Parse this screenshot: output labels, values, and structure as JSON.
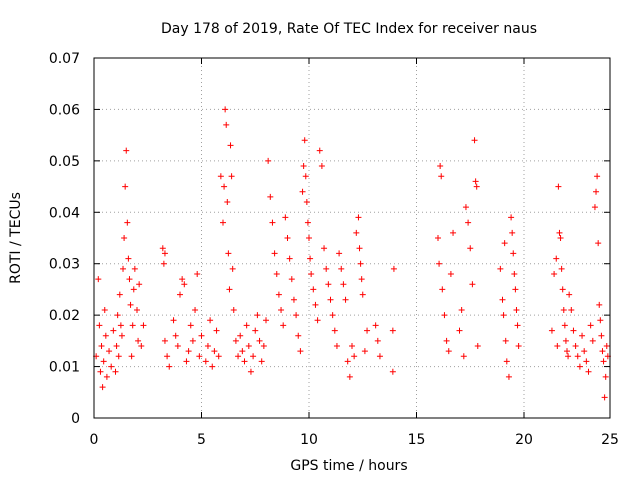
{
  "chart_data": {
    "type": "scatter",
    "title": "Day 178 of 2019, Rate Of TEC Index for receiver naus",
    "xlabel": "GPS time / hours",
    "ylabel": "ROTI / TECUs",
    "xlim": [
      0,
      24
    ],
    "ylim": [
      0,
      0.07
    ],
    "x_ticks": [
      0,
      5,
      10,
      15,
      20,
      25
    ],
    "x_tick_labels": [
      "0",
      "5",
      "10",
      "15",
      "20",
      "25"
    ],
    "y_ticks": [
      0,
      0.01,
      0.02,
      0.03,
      0.04,
      0.05,
      0.06,
      0.07
    ],
    "y_tick_labels": [
      "0",
      "0.01",
      "0.02",
      "0.03",
      "0.04",
      "0.05",
      "0.06",
      "0.07"
    ],
    "grid": true,
    "marker": "+",
    "color": "#ff0000",
    "series": [
      {
        "points": [
          [
            0.1,
            0.012
          ],
          [
            0.2,
            0.027
          ],
          [
            0.25,
            0.018
          ],
          [
            0.3,
            0.009
          ],
          [
            0.35,
            0.014
          ],
          [
            0.4,
            0.006
          ],
          [
            0.45,
            0.011
          ],
          [
            0.5,
            0.021
          ],
          [
            0.55,
            0.016
          ],
          [
            0.6,
            0.008
          ],
          [
            0.7,
            0.013
          ],
          [
            0.8,
            0.01
          ],
          [
            0.9,
            0.017
          ],
          [
            1.0,
            0.009
          ],
          [
            1.05,
            0.014
          ],
          [
            1.1,
            0.02
          ],
          [
            1.15,
            0.012
          ],
          [
            1.2,
            0.024
          ],
          [
            1.25,
            0.018
          ],
          [
            1.3,
            0.016
          ],
          [
            1.35,
            0.029
          ],
          [
            1.4,
            0.035
          ],
          [
            1.45,
            0.045
          ],
          [
            1.5,
            0.052
          ],
          [
            1.55,
            0.038
          ],
          [
            1.6,
            0.031
          ],
          [
            1.65,
            0.027
          ],
          [
            1.7,
            0.022
          ],
          [
            1.75,
            0.012
          ],
          [
            1.8,
            0.018
          ],
          [
            1.85,
            0.025
          ],
          [
            1.9,
            0.029
          ],
          [
            2.0,
            0.021
          ],
          [
            2.05,
            0.015
          ],
          [
            2.1,
            0.026
          ],
          [
            2.2,
            0.014
          ],
          [
            2.3,
            0.018
          ],
          [
            3.2,
            0.033
          ],
          [
            3.25,
            0.03
          ],
          [
            3.3,
            0.032
          ],
          [
            3.3,
            0.015
          ],
          [
            3.4,
            0.012
          ],
          [
            3.5,
            0.01
          ],
          [
            3.7,
            0.019
          ],
          [
            3.8,
            0.016
          ],
          [
            3.9,
            0.014
          ],
          [
            4.0,
            0.024
          ],
          [
            4.1,
            0.027
          ],
          [
            4.2,
            0.026
          ],
          [
            4.3,
            0.011
          ],
          [
            4.4,
            0.013
          ],
          [
            4.5,
            0.018
          ],
          [
            4.6,
            0.015
          ],
          [
            4.7,
            0.021
          ],
          [
            4.8,
            0.028
          ],
          [
            4.9,
            0.012
          ],
          [
            5.0,
            0.016
          ],
          [
            5.2,
            0.011
          ],
          [
            5.3,
            0.014
          ],
          [
            5.4,
            0.019
          ],
          [
            5.5,
            0.01
          ],
          [
            5.6,
            0.013
          ],
          [
            5.7,
            0.017
          ],
          [
            5.8,
            0.012
          ],
          [
            5.9,
            0.047
          ],
          [
            6.0,
            0.038
          ],
          [
            6.05,
            0.045
          ],
          [
            6.1,
            0.06
          ],
          [
            6.15,
            0.057
          ],
          [
            6.2,
            0.042
          ],
          [
            6.25,
            0.032
          ],
          [
            6.3,
            0.025
          ],
          [
            6.35,
            0.053
          ],
          [
            6.4,
            0.047
          ],
          [
            6.45,
            0.029
          ],
          [
            6.5,
            0.021
          ],
          [
            6.6,
            0.015
          ],
          [
            6.7,
            0.012
          ],
          [
            6.8,
            0.016
          ],
          [
            6.9,
            0.013
          ],
          [
            7.0,
            0.011
          ],
          [
            7.1,
            0.018
          ],
          [
            7.2,
            0.014
          ],
          [
            7.3,
            0.009
          ],
          [
            7.4,
            0.012
          ],
          [
            7.5,
            0.017
          ],
          [
            7.6,
            0.02
          ],
          [
            7.7,
            0.015
          ],
          [
            7.8,
            0.011
          ],
          [
            7.9,
            0.014
          ],
          [
            8.0,
            0.019
          ],
          [
            8.1,
            0.05
          ],
          [
            8.2,
            0.043
          ],
          [
            8.3,
            0.038
          ],
          [
            8.4,
            0.032
          ],
          [
            8.5,
            0.028
          ],
          [
            8.6,
            0.024
          ],
          [
            8.7,
            0.021
          ],
          [
            8.8,
            0.018
          ],
          [
            8.9,
            0.039
          ],
          [
            9.0,
            0.035
          ],
          [
            9.1,
            0.031
          ],
          [
            9.2,
            0.027
          ],
          [
            9.3,
            0.023
          ],
          [
            9.4,
            0.02
          ],
          [
            9.5,
            0.016
          ],
          [
            9.6,
            0.013
          ],
          [
            9.7,
            0.044
          ],
          [
            9.75,
            0.049
          ],
          [
            9.8,
            0.054
          ],
          [
            9.85,
            0.047
          ],
          [
            9.9,
            0.042
          ],
          [
            9.95,
            0.038
          ],
          [
            10.0,
            0.035
          ],
          [
            10.05,
            0.031
          ],
          [
            10.1,
            0.028
          ],
          [
            10.2,
            0.025
          ],
          [
            10.3,
            0.022
          ],
          [
            10.4,
            0.019
          ],
          [
            10.5,
            0.052
          ],
          [
            10.6,
            0.049
          ],
          [
            10.7,
            0.033
          ],
          [
            10.8,
            0.029
          ],
          [
            10.9,
            0.026
          ],
          [
            11.0,
            0.023
          ],
          [
            11.1,
            0.02
          ],
          [
            11.2,
            0.017
          ],
          [
            11.3,
            0.014
          ],
          [
            11.4,
            0.032
          ],
          [
            11.5,
            0.029
          ],
          [
            11.6,
            0.026
          ],
          [
            11.7,
            0.023
          ],
          [
            11.8,
            0.011
          ],
          [
            11.9,
            0.008
          ],
          [
            12.0,
            0.014
          ],
          [
            12.1,
            0.012
          ],
          [
            12.2,
            0.036
          ],
          [
            12.3,
            0.039
          ],
          [
            12.35,
            0.033
          ],
          [
            12.4,
            0.03
          ],
          [
            12.45,
            0.027
          ],
          [
            12.5,
            0.024
          ],
          [
            12.6,
            0.013
          ],
          [
            12.7,
            0.017
          ],
          [
            13.1,
            0.018
          ],
          [
            13.2,
            0.015
          ],
          [
            13.3,
            0.012
          ],
          [
            13.9,
            0.017
          ],
          [
            13.9,
            0.009
          ],
          [
            13.95,
            0.029
          ],
          [
            16.0,
            0.035
          ],
          [
            16.05,
            0.03
          ],
          [
            16.1,
            0.049
          ],
          [
            16.15,
            0.047
          ],
          [
            16.2,
            0.025
          ],
          [
            16.3,
            0.02
          ],
          [
            16.4,
            0.015
          ],
          [
            16.5,
            0.013
          ],
          [
            16.6,
            0.028
          ],
          [
            16.7,
            0.036
          ],
          [
            17.0,
            0.017
          ],
          [
            17.1,
            0.021
          ],
          [
            17.2,
            0.012
          ],
          [
            17.3,
            0.041
          ],
          [
            17.4,
            0.038
          ],
          [
            17.5,
            0.033
          ],
          [
            17.6,
            0.026
          ],
          [
            17.7,
            0.054
          ],
          [
            17.75,
            0.046
          ],
          [
            17.8,
            0.045
          ],
          [
            17.85,
            0.014
          ],
          [
            18.9,
            0.029
          ],
          [
            19.0,
            0.023
          ],
          [
            19.05,
            0.02
          ],
          [
            19.1,
            0.034
          ],
          [
            19.15,
            0.015
          ],
          [
            19.2,
            0.011
          ],
          [
            19.3,
            0.008
          ],
          [
            19.4,
            0.039
          ],
          [
            19.45,
            0.036
          ],
          [
            19.5,
            0.032
          ],
          [
            19.55,
            0.028
          ],
          [
            19.6,
            0.025
          ],
          [
            19.65,
            0.021
          ],
          [
            19.7,
            0.018
          ],
          [
            19.75,
            0.014
          ],
          [
            21.3,
            0.017
          ],
          [
            21.4,
            0.028
          ],
          [
            21.5,
            0.031
          ],
          [
            21.55,
            0.014
          ],
          [
            21.6,
            0.045
          ],
          [
            21.65,
            0.036
          ],
          [
            21.7,
            0.035
          ],
          [
            21.75,
            0.029
          ],
          [
            21.8,
            0.025
          ],
          [
            21.85,
            0.021
          ],
          [
            21.9,
            0.018
          ],
          [
            21.95,
            0.015
          ],
          [
            22.0,
            0.013
          ],
          [
            22.05,
            0.012
          ],
          [
            22.1,
            0.024
          ],
          [
            22.2,
            0.021
          ],
          [
            22.3,
            0.017
          ],
          [
            22.4,
            0.014
          ],
          [
            22.5,
            0.012
          ],
          [
            22.6,
            0.01
          ],
          [
            22.7,
            0.016
          ],
          [
            22.8,
            0.013
          ],
          [
            22.9,
            0.011
          ],
          [
            23.0,
            0.009
          ],
          [
            23.1,
            0.018
          ],
          [
            23.2,
            0.015
          ],
          [
            23.3,
            0.041
          ],
          [
            23.35,
            0.044
          ],
          [
            23.4,
            0.047
          ],
          [
            23.45,
            0.034
          ],
          [
            23.5,
            0.022
          ],
          [
            23.55,
            0.019
          ],
          [
            23.6,
            0.016
          ],
          [
            23.65,
            0.013
          ],
          [
            23.7,
            0.011
          ],
          [
            23.75,
            0.004
          ],
          [
            23.8,
            0.008
          ],
          [
            23.85,
            0.014
          ],
          [
            23.9,
            0.012
          ]
        ]
      }
    ]
  }
}
